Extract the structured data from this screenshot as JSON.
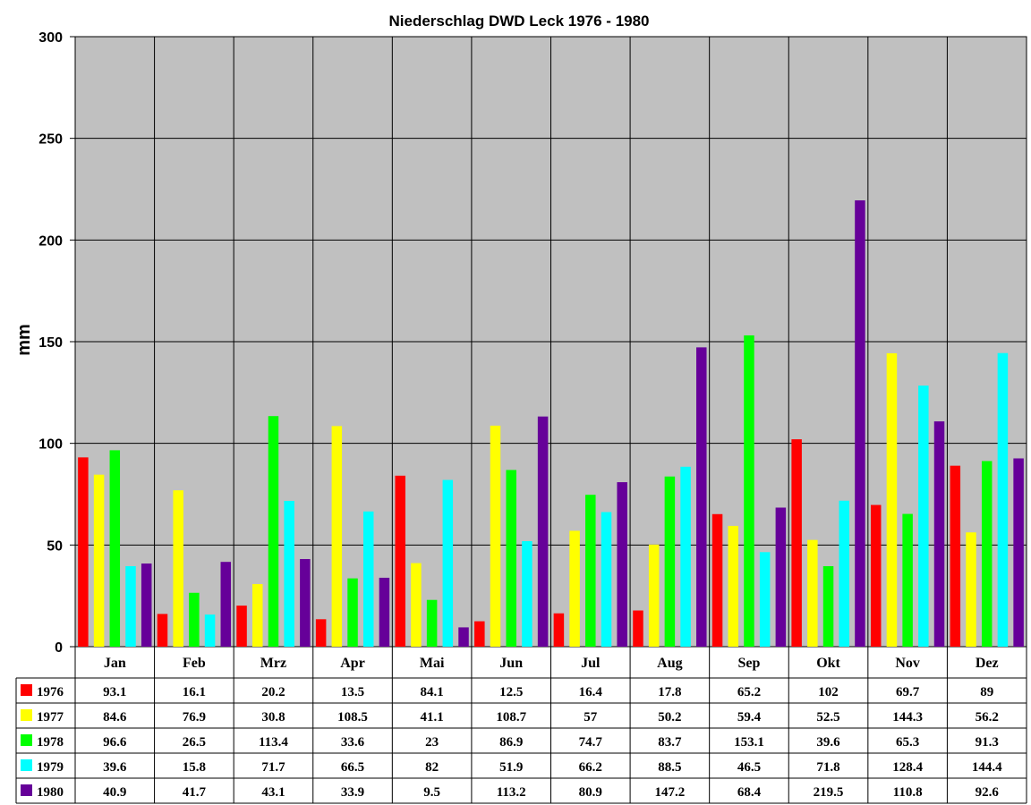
{
  "chart_data": {
    "type": "bar",
    "title": "Niederschlag DWD Leck 1976 - 1980",
    "ylabel": "mm",
    "ylim": [
      0,
      300
    ],
    "yticks": [
      "0",
      "50",
      "100",
      "150",
      "200",
      "250",
      "300"
    ],
    "ytick_values": [
      0,
      50,
      100,
      150,
      200,
      250,
      300
    ],
    "grid": true,
    "legend": "data-table-below",
    "background_color": "#c0c0c0",
    "categories": [
      "Jan",
      "Feb",
      "Mrz",
      "Apr",
      "Mai",
      "Jun",
      "Jul",
      "Aug",
      "Sep",
      "Okt",
      "Nov",
      "Dez"
    ],
    "series": [
      {
        "name": "1976",
        "color": "#ff0000",
        "values": [
          93.1,
          16.1,
          20.2,
          13.5,
          84.1,
          12.5,
          16.4,
          17.8,
          65.2,
          102,
          69.7,
          89
        ],
        "labels": [
          "93.1",
          "16.1",
          "20.2",
          "13.5",
          "84.1",
          "12.5",
          "16.4",
          "17.8",
          "65.2",
          "102",
          "69.7",
          "89"
        ]
      },
      {
        "name": "1977",
        "color": "#ffff00",
        "values": [
          84.6,
          76.9,
          30.8,
          108.5,
          41.1,
          108.7,
          57,
          50.2,
          59.4,
          52.5,
          144.3,
          56.2
        ],
        "labels": [
          "84.6",
          "76.9",
          "30.8",
          "108.5",
          "41.1",
          "108.7",
          "57",
          "50.2",
          "59.4",
          "52.5",
          "144.3",
          "56.2"
        ]
      },
      {
        "name": "1978",
        "color": "#00ff00",
        "values": [
          96.6,
          26.5,
          113.4,
          33.6,
          23,
          86.9,
          74.7,
          83.7,
          153.1,
          39.6,
          65.3,
          91.3
        ],
        "labels": [
          "96.6",
          "26.5",
          "113.4",
          "33.6",
          "23",
          "86.9",
          "74.7",
          "83.7",
          "153.1",
          "39.6",
          "65.3",
          "91.3"
        ]
      },
      {
        "name": "1979",
        "color": "#00ffff",
        "values": [
          39.6,
          15.8,
          71.7,
          66.5,
          82,
          51.9,
          66.2,
          88.5,
          46.5,
          71.8,
          128.4,
          144.4
        ],
        "labels": [
          "39.6",
          "15.8",
          "71.7",
          "66.5",
          "82",
          "51.9",
          "66.2",
          "88.5",
          "46.5",
          "71.8",
          "128.4",
          "144.4"
        ]
      },
      {
        "name": "1980",
        "color": "#660099",
        "values": [
          40.9,
          41.7,
          43.1,
          33.9,
          9.5,
          113.2,
          80.9,
          147.2,
          68.4,
          219.5,
          110.8,
          92.6
        ],
        "labels": [
          "40.9",
          "41.7",
          "43.1",
          "33.9",
          "9.5",
          "113.2",
          "80.9",
          "147.2",
          "68.4",
          "219.5",
          "110.8",
          "92.6"
        ]
      }
    ]
  }
}
